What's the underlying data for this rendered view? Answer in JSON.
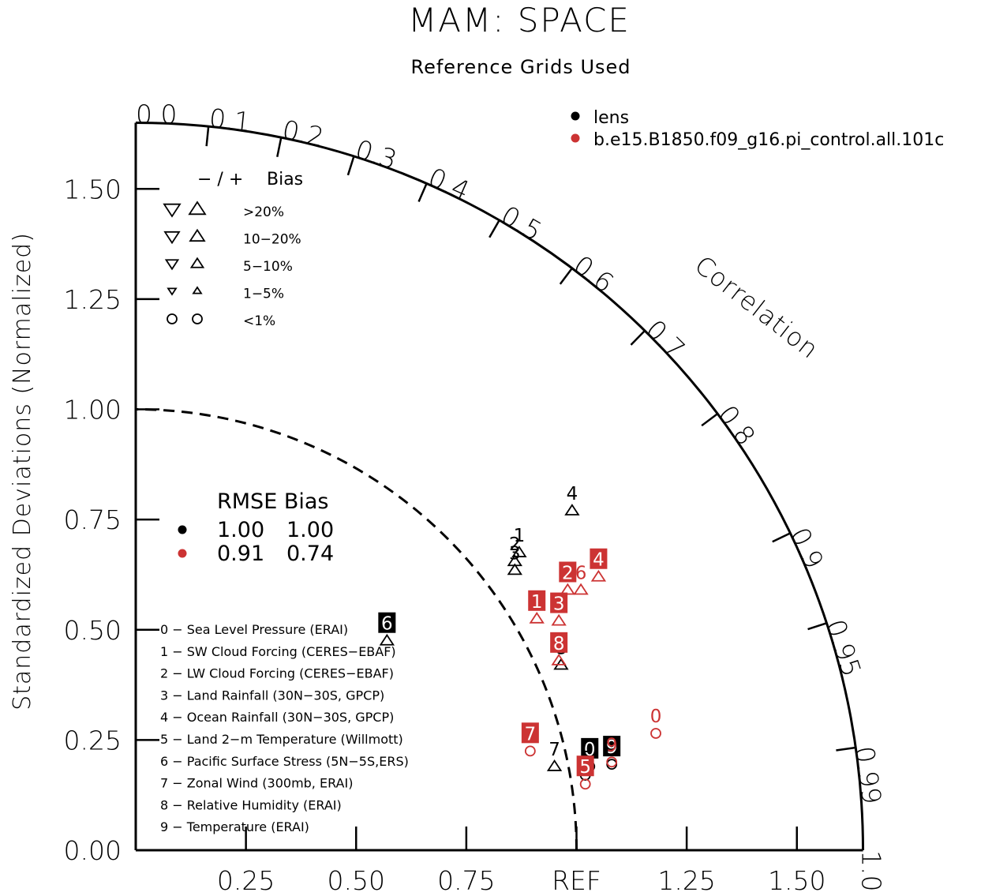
{
  "chart_data": {
    "type": "scatter",
    "title": "MAM: SPACE",
    "subtitle": "Reference Grids Used",
    "ylabel": "Standardized Deviations (Normalized)",
    "xlabel_ref": "REF",
    "corr_title": "Correlation",
    "xlim": [
      0,
      1.65
    ],
    "ylim": [
      0,
      1.65
    ],
    "y_ticks": [
      {
        "value": 0.0,
        "label": "0.00"
      },
      {
        "value": 0.25,
        "label": "0.25"
      },
      {
        "value": 0.5,
        "label": "0.50"
      },
      {
        "value": 0.75,
        "label": "0.75"
      },
      {
        "value": 1.0,
        "label": "1.00"
      },
      {
        "value": 1.25,
        "label": "1.25"
      },
      {
        "value": 1.5,
        "label": "1.50"
      }
    ],
    "x_ticks": [
      {
        "value": 0.25,
        "label": "0.25"
      },
      {
        "value": 0.5,
        "label": "0.50"
      },
      {
        "value": 0.75,
        "label": "0.75"
      },
      {
        "value": 1.0,
        "label": "REF"
      },
      {
        "value": 1.25,
        "label": "1.25"
      },
      {
        "value": 1.5,
        "label": "1.50"
      }
    ],
    "corr_ticks": [
      {
        "value": 0.0,
        "label": "0.0"
      },
      {
        "value": 0.1,
        "label": "0.1"
      },
      {
        "value": 0.2,
        "label": "0.2"
      },
      {
        "value": 0.3,
        "label": "0.3"
      },
      {
        "value": 0.4,
        "label": "0.4"
      },
      {
        "value": 0.5,
        "label": "0.5"
      },
      {
        "value": 0.6,
        "label": "0.6"
      },
      {
        "value": 0.7,
        "label": "0.7"
      },
      {
        "value": 0.8,
        "label": "0.8"
      },
      {
        "value": 0.9,
        "label": "0.9"
      },
      {
        "value": 0.95,
        "label": "0.95"
      },
      {
        "value": 0.99,
        "label": "0.99"
      },
      {
        "value": 1.0,
        "label": "1.0"
      }
    ],
    "ref_arc_radius": 1.0,
    "series": [
      {
        "name": "lens",
        "color": "#000000"
      },
      {
        "name": "b.e15.B1850.f09_g16.pi_control.all.101c",
        "color": "#cc3333"
      }
    ],
    "bias_legend": {
      "header_signs": "− / +",
      "header_label": "Bias",
      "rows": [
        {
          "label": ">20%",
          "shape": "triangle",
          "size": 5
        },
        {
          "label": "10−20%",
          "shape": "triangle",
          "size": 4
        },
        {
          "label": "5−10%",
          "shape": "triangle",
          "size": 3
        },
        {
          "label": "1−5%",
          "shape": "triangle",
          "size": 2
        },
        {
          "label": "<1%",
          "shape": "circle",
          "size": 1
        }
      ]
    },
    "rmse_legend": {
      "header": "RMSE Bias",
      "rows": [
        {
          "color": "#000000",
          "rmse": "1.00",
          "bias": "1.00"
        },
        {
          "color": "#cc3333",
          "rmse": "0.91",
          "bias": "0.74"
        }
      ]
    },
    "variables": [
      "0 − Sea Level Pressure (ERAI)",
      "1 − SW Cloud Forcing (CERES−EBAF)",
      "2 − LW Cloud Forcing (CERES−EBAF)",
      "3 − Land Rainfall (30N−30S, GPCP)",
      "4 − Ocean Rainfall (30N−30S, GPCP)",
      "5 − Land 2−m Temperature (Willmott)",
      "6 − Pacific Surface Stress (5N−5S,ERS)",
      "7 − Zonal Wind (300mb, ERAI)",
      "8 − Relative Humidity (ERAI)",
      "9 − Temperature (ERAI)"
    ],
    "points": [
      {
        "series": 0,
        "label": "0",
        "x": 1.03,
        "y": 0.19,
        "marker": "o",
        "boxed": true
      },
      {
        "series": 0,
        "label": "1",
        "x": 0.87,
        "y": 0.675,
        "marker": "^",
        "boxed": false
      },
      {
        "series": 0,
        "label": "2",
        "x": 0.86,
        "y": 0.655,
        "marker": "^",
        "boxed": false
      },
      {
        "series": 0,
        "label": "3",
        "x": 0.86,
        "y": 0.635,
        "marker": "^",
        "boxed": false
      },
      {
        "series": 0,
        "label": "4",
        "x": 0.99,
        "y": 0.77,
        "marker": "^",
        "boxed": false
      },
      {
        "series": 0,
        "label": "5",
        "x": 1.02,
        "y": 0.17,
        "marker": "o",
        "boxed": false
      },
      {
        "series": 0,
        "label": "6",
        "x": 0.57,
        "y": 0.475,
        "marker": "^",
        "boxed": true
      },
      {
        "series": 0,
        "label": "7",
        "x": 0.95,
        "y": 0.19,
        "marker": "^",
        "boxed": false
      },
      {
        "series": 0,
        "label": "8",
        "x": 0.965,
        "y": 0.42,
        "marker": "^",
        "boxed": false
      },
      {
        "series": 0,
        "label": "9",
        "x": 1.08,
        "y": 0.195,
        "marker": "o",
        "boxed": true
      },
      {
        "series": 1,
        "label": "0",
        "x": 1.18,
        "y": 0.265,
        "marker": "o",
        "boxed": false
      },
      {
        "series": 1,
        "label": "1",
        "x": 0.91,
        "y": 0.525,
        "marker": "^",
        "boxed": true
      },
      {
        "series": 1,
        "label": "2",
        "x": 0.98,
        "y": 0.59,
        "marker": "^",
        "boxed": true
      },
      {
        "series": 1,
        "label": "3",
        "x": 0.96,
        "y": 0.52,
        "marker": "^",
        "boxed": true
      },
      {
        "series": 1,
        "label": "4",
        "x": 1.05,
        "y": 0.62,
        "marker": "^",
        "boxed": true
      },
      {
        "series": 1,
        "label": "5",
        "x": 1.02,
        "y": 0.15,
        "marker": "o",
        "boxed": true
      },
      {
        "series": 1,
        "label": "6",
        "x": 1.01,
        "y": 0.59,
        "marker": "^",
        "boxed": false
      },
      {
        "series": 1,
        "label": "7",
        "x": 0.895,
        "y": 0.225,
        "marker": "o",
        "boxed": true
      },
      {
        "series": 1,
        "label": "8",
        "x": 0.96,
        "y": 0.43,
        "marker": "^",
        "boxed": true
      },
      {
        "series": 1,
        "label": "9",
        "x": 1.08,
        "y": 0.2,
        "marker": "o",
        "boxed": false
      }
    ]
  }
}
